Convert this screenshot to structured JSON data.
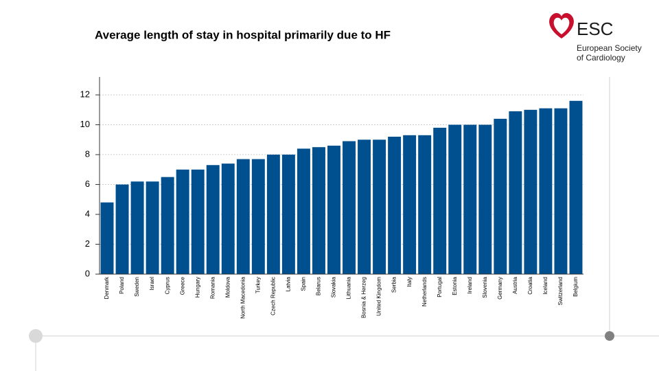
{
  "chart_data": {
    "type": "bar",
    "title": "Average length of stay in hospital primarily due to HF",
    "categories": [
      "Denmark",
      "Poland",
      "Sweden",
      "Israel",
      "Cyprus",
      "Greece",
      "Hungary",
      "Romania",
      "Moldova",
      "North Macedonia",
      "Turkey",
      "Czech Republic",
      "Latvia",
      "Spain",
      "Belarus",
      "Slovakia",
      "Lithuania",
      "Bosnia & Herzeg",
      "United Kingdom",
      "Serbia",
      "Italy",
      "Netherlands",
      "Portugal",
      "Estonia",
      "Ireland",
      "Slovenia",
      "Germany",
      "Austria",
      "Croatia",
      "Iceland",
      "Switzerland",
      "Belgium"
    ],
    "values": [
      4.8,
      6.0,
      6.2,
      6.2,
      6.5,
      7.0,
      7.0,
      7.3,
      7.4,
      7.7,
      7.7,
      8.0,
      8.0,
      8.4,
      8.5,
      8.6,
      8.9,
      9.0,
      9.0,
      9.2,
      9.3,
      9.3,
      9.8,
      10.0,
      10.0,
      10.0,
      10.4,
      10.9,
      11.0,
      11.1,
      11.1,
      11.6
    ],
    "color": "#00508f",
    "ylim": [
      0,
      13.2
    ],
    "yticks": [
      0,
      2,
      4,
      6,
      8,
      10,
      12
    ],
    "grid": true
  },
  "logo": {
    "acronym": "ESC",
    "line1": "European Society",
    "line2": "of Cardiology"
  }
}
